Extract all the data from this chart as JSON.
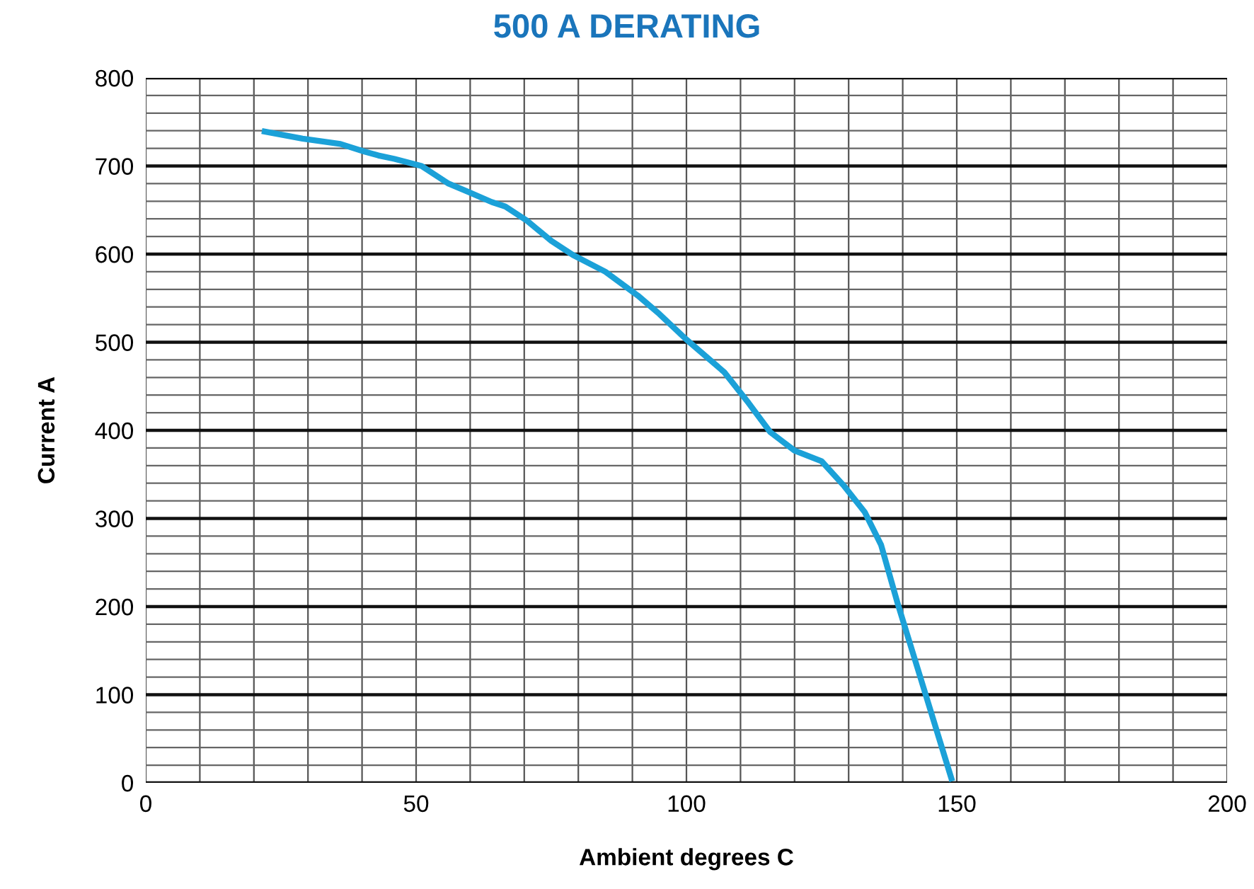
{
  "chart_data": {
    "type": "line",
    "title": "500 A DERATING",
    "xlabel": "Ambient degrees C",
    "ylabel": "Current A",
    "xlim": [
      0,
      200
    ],
    "ylim": [
      0,
      800
    ],
    "xticks": [
      0,
      {
        "value": 10,
        "label": null
      },
      {
        "value": 20,
        "label": null
      },
      {
        "value": 30,
        "label": null
      },
      {
        "value": 40,
        "label": null
      },
      50,
      {
        "value": 60,
        "label": null
      },
      {
        "value": 70,
        "label": null
      },
      {
        "value": 80,
        "label": null
      },
      {
        "value": 90,
        "label": null
      },
      100,
      {
        "value": 110,
        "label": null
      },
      {
        "value": 120,
        "label": null
      },
      {
        "value": 130,
        "label": null
      },
      {
        "value": 140,
        "label": null
      },
      150,
      {
        "value": 160,
        "label": null
      },
      {
        "value": 170,
        "label": null
      },
      {
        "value": 180,
        "label": null
      },
      {
        "value": 190,
        "label": null
      },
      200
    ],
    "yticks": [
      0,
      {
        "value": 20,
        "label": null
      },
      {
        "value": 40,
        "label": null
      },
      {
        "value": 60,
        "label": null
      },
      {
        "value": 80,
        "label": null
      },
      100,
      {
        "value": 120,
        "label": null
      },
      {
        "value": 140,
        "label": null
      },
      {
        "value": 160,
        "label": null
      },
      {
        "value": 180,
        "label": null
      },
      200,
      {
        "value": 220,
        "label": null
      },
      {
        "value": 240,
        "label": null
      },
      {
        "value": 260,
        "label": null
      },
      {
        "value": 280,
        "label": null
      },
      300,
      {
        "value": 320,
        "label": null
      },
      {
        "value": 340,
        "label": null
      },
      {
        "value": 360,
        "label": null
      },
      {
        "value": 380,
        "label": null
      },
      400,
      {
        "value": 420,
        "label": null
      },
      {
        "value": 440,
        "label": null
      },
      {
        "value": 460,
        "label": null
      },
      {
        "value": 480,
        "label": null
      },
      500,
      {
        "value": 520,
        "label": null
      },
      {
        "value": 540,
        "label": null
      },
      {
        "value": 560,
        "label": null
      },
      {
        "value": 580,
        "label": null
      },
      600,
      {
        "value": 620,
        "label": null
      },
      {
        "value": 640,
        "label": null
      },
      {
        "value": 660,
        "label": null
      },
      {
        "value": 680,
        "label": null
      },
      700,
      {
        "value": 720,
        "label": null
      },
      {
        "value": 740,
        "label": null
      },
      {
        "value": 760,
        "label": null
      },
      {
        "value": 780,
        "label": null
      },
      800
    ],
    "grid": true,
    "marker": "none",
    "line_style": "solid",
    "series": [
      {
        "color": "#1ba1d8",
        "x": [
          22,
          29,
          36,
          40.6,
          43,
          46,
          51,
          56,
          59.5,
          64,
          66.5,
          70.5,
          75,
          79,
          85,
          91,
          95,
          100,
          107,
          111.5,
          115.5,
          120,
          125,
          129,
          133,
          136,
          139,
          143,
          149
        ],
        "values": [
          739,
          731,
          725,
          716,
          712,
          708,
          700,
          680,
          671,
          659,
          654,
          638,
          615,
          599,
          580,
          553,
          532,
          503,
          466,
          431,
          398,
          377,
          365,
          338,
          307,
          270,
          205,
          125,
          5
        ]
      }
    ]
  }
}
